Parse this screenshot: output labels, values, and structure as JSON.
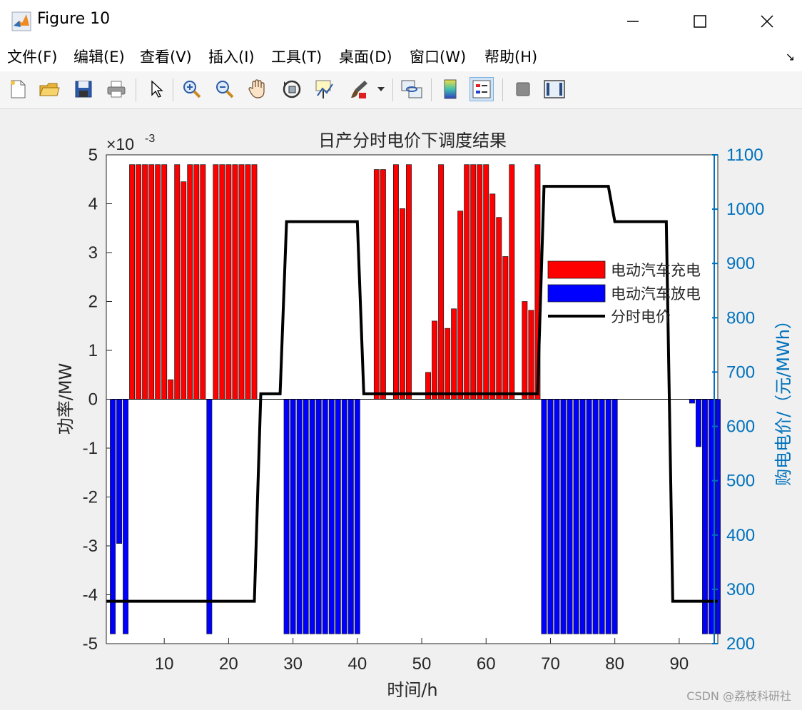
{
  "window": {
    "title": "Figure 10"
  },
  "menu": [
    "文件(F)",
    "编辑(E)",
    "查看(V)",
    "插入(I)",
    "工具(T)",
    "桌面(D)",
    "窗口(W)",
    "帮助(H)"
  ],
  "toolbar_icons": [
    "new-file-icon",
    "open-folder-icon",
    "save-icon",
    "print-icon",
    "pointer-icon",
    "zoom-in-icon",
    "zoom-out-icon",
    "pan-hand-icon",
    "rotate-3d-icon",
    "data-cursor-icon",
    "brush-icon",
    "link-plot-icon",
    "colorbar-icon",
    "legend-icon",
    "hide-plot-tools-icon",
    "show-plot-tools-icon"
  ],
  "watermark": "CSDN @荔枝科研社",
  "chart_data": {
    "type": "bar",
    "title": "日产分时电价下调度结果",
    "xlabel": "时间/h",
    "ylabel_left": "功率/MW",
    "ylabel_right": "购电电价/（元/MWh）",
    "exponent_label": "×10",
    "exponent_power": "-3",
    "xlim": [
      1,
      96
    ],
    "ylim_left": [
      -5,
      5
    ],
    "ylim_right": [
      200,
      1100
    ],
    "x_ticks": [
      10,
      20,
      30,
      40,
      50,
      60,
      70,
      80,
      90
    ],
    "y_ticks_left": [
      -5,
      -4,
      -3,
      -2,
      -1,
      0,
      1,
      2,
      3,
      4,
      5
    ],
    "y_ticks_right": [
      200,
      300,
      400,
      500,
      600,
      700,
      800,
      900,
      1000,
      1100
    ],
    "legend_position": "inside-right",
    "colors": {
      "charge": "#ff0000",
      "discharge": "#0000ff",
      "price": "#000000",
      "right_axis": "#0072bd"
    },
    "series": [
      {
        "name": "电动汽车充电",
        "x": [
          5,
          6,
          7,
          8,
          9,
          10,
          11,
          12,
          13,
          14,
          15,
          16,
          18,
          19,
          20,
          21,
          22,
          23,
          24,
          43,
          44,
          46,
          47,
          48,
          51,
          52,
          53,
          54,
          55,
          56,
          57,
          58,
          59,
          60,
          61,
          62,
          63,
          64,
          66,
          67,
          68
        ],
        "values": [
          4.8,
          4.8,
          4.8,
          4.8,
          4.8,
          4.8,
          0.4,
          4.8,
          4.45,
          4.8,
          4.8,
          4.8,
          4.8,
          4.8,
          4.8,
          4.8,
          4.8,
          4.8,
          4.8,
          4.7,
          4.7,
          4.8,
          3.9,
          4.8,
          0.55,
          1.6,
          4.8,
          1.45,
          1.85,
          3.85,
          4.8,
          4.8,
          4.8,
          4.8,
          4.2,
          3.72,
          2.92,
          4.8,
          2.0,
          1.82,
          4.8
        ]
      },
      {
        "name": "电动汽车放电",
        "x": [
          2,
          3,
          4,
          17,
          29,
          30,
          31,
          32,
          33,
          34,
          35,
          36,
          37,
          38,
          39,
          40,
          69,
          70,
          71,
          72,
          73,
          74,
          75,
          76,
          77,
          78,
          79,
          80,
          92,
          93,
          94,
          95,
          96
        ],
        "values": [
          -4.8,
          -2.95,
          -4.8,
          -4.8,
          -4.8,
          -4.8,
          -4.8,
          -4.8,
          -4.8,
          -4.8,
          -4.8,
          -4.8,
          -4.8,
          -4.8,
          -4.8,
          -4.8,
          -4.8,
          -4.8,
          -4.8,
          -4.8,
          -4.8,
          -4.8,
          -4.8,
          -4.8,
          -4.8,
          -4.8,
          -4.8,
          -4.8,
          -0.08,
          -0.97,
          -4.8,
          -4.8,
          -4.8
        ]
      },
      {
        "name": "分时电价",
        "axis": "right",
        "x": [
          1,
          24,
          25,
          28,
          29,
          40,
          41,
          68,
          69,
          79,
          80,
          88,
          89,
          96
        ],
        "values": [
          278,
          278,
          660,
          660,
          977,
          977,
          660,
          660,
          1042,
          1042,
          977,
          977,
          278,
          278
        ]
      }
    ]
  }
}
